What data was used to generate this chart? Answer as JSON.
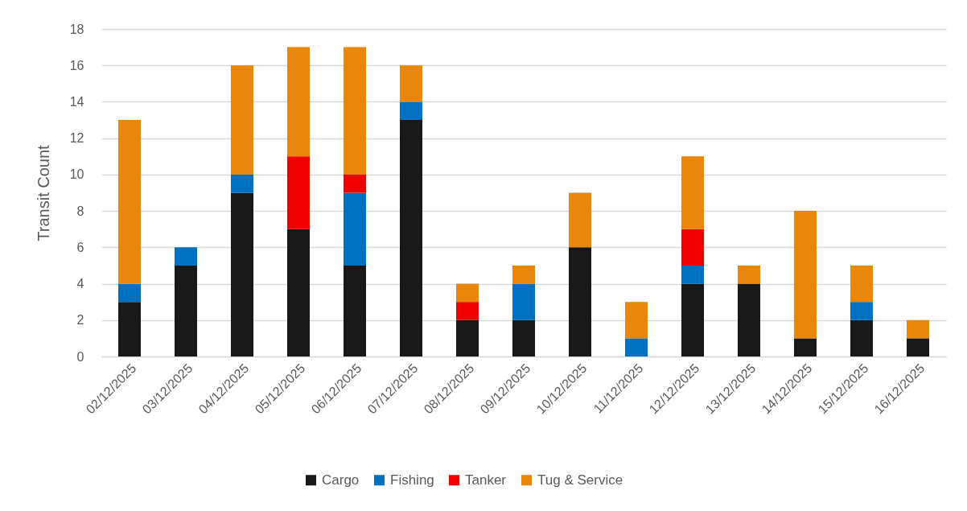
{
  "chart_data": {
    "type": "bar",
    "stacked": true,
    "ylabel": "Transit Count",
    "categories": [
      "02/12/2025",
      "03/12/2025",
      "04/12/2025",
      "05/12/2025",
      "06/12/2025",
      "07/12/2025",
      "08/12/2025",
      "09/12/2025",
      "10/12/2025",
      "11/12/2025",
      "12/12/2025",
      "13/12/2025",
      "14/12/2025",
      "15/12/2025",
      "16/12/2025"
    ],
    "series": [
      {
        "name": "Cargo",
        "color": "#181818",
        "values": [
          3,
          5,
          9,
          7,
          5,
          13,
          2,
          2,
          6,
          null,
          4,
          4,
          1,
          2,
          1
        ]
      },
      {
        "name": "Fishing",
        "color": "#0070c0",
        "values": [
          1,
          1,
          1,
          null,
          4,
          1,
          null,
          2,
          null,
          1,
          1,
          null,
          null,
          1,
          null
        ]
      },
      {
        "name": "Tanker",
        "color": "#ee0000",
        "values": [
          null,
          null,
          null,
          4,
          1,
          null,
          1,
          null,
          null,
          null,
          2,
          null,
          null,
          null,
          null
        ]
      },
      {
        "name": "Tug & Service",
        "color": "#e9870c",
        "values": [
          9,
          null,
          6,
          6,
          7,
          2,
          1,
          1,
          3,
          2,
          4,
          1,
          7,
          2,
          1
        ]
      }
    ],
    "ylim": [
      0,
      18
    ],
    "yticks": [
      0,
      2,
      4,
      6,
      8,
      10,
      12,
      14,
      16,
      18
    ],
    "grid": "y",
    "legend": "bottom"
  }
}
